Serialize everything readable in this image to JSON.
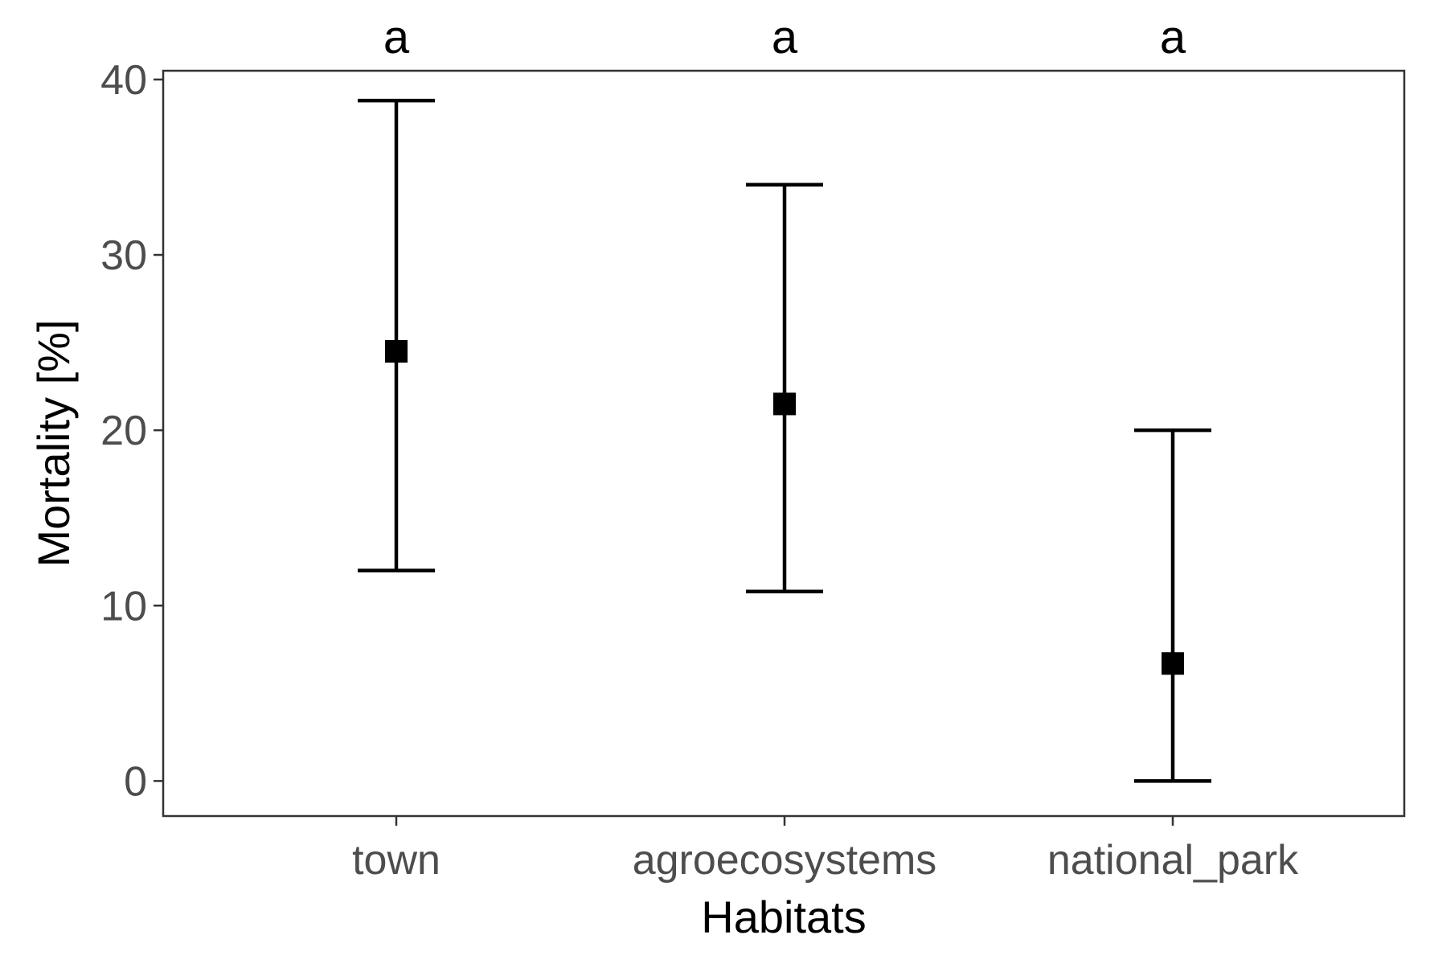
{
  "chart_data": {
    "type": "scatter",
    "subtype": "point-with-errorbars",
    "title": "",
    "xlabel": "Habitats",
    "ylabel": "Mortality [%]",
    "categories": [
      "town",
      "agroecosystems",
      "national_park"
    ],
    "series": [
      {
        "values": [
          24.5,
          21.5,
          6.7
        ],
        "lower": [
          12.0,
          10.8,
          0.0
        ],
        "upper": [
          38.8,
          34.0,
          20.0
        ]
      }
    ],
    "annotations": [
      "a",
      "a",
      "a"
    ],
    "ylim": [
      -2,
      40.5
    ],
    "yticks": [
      0,
      10,
      20,
      30,
      40
    ],
    "grid": false,
    "legend": "none",
    "colors": {
      "marker": "#000000",
      "errorbar": "#000000",
      "tick_label": "#4d4d4d",
      "panel_border": "#333333"
    }
  }
}
